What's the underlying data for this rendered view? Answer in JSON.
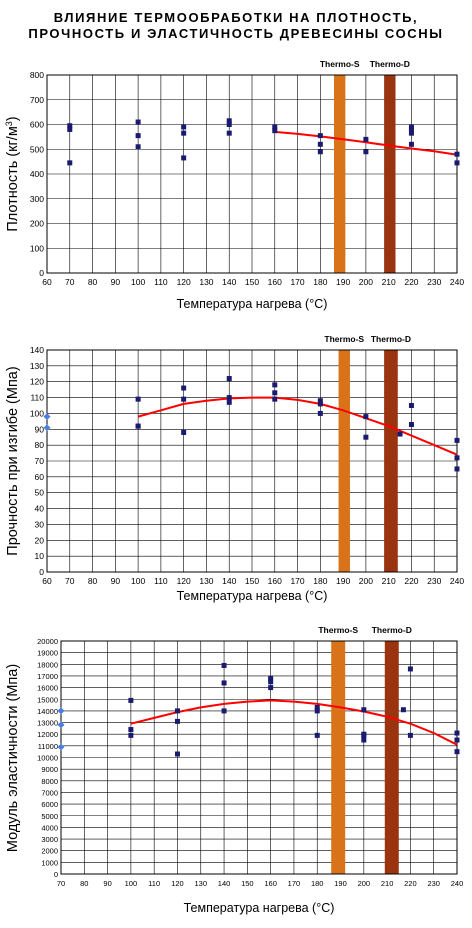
{
  "title": {
    "line1": "ВЛИЯНИЕ ТЕРМООБРАБОТКИ НА ПЛОТНОСТЬ,",
    "line2": "ПРОЧНОСТЬ И ЭЛАСТИЧНОСТЬ ДРЕВЕСИНЫ СОСНЫ"
  },
  "colors": {
    "marker": "#1a1a6e",
    "fit": "#ff0000",
    "control_marker": "#4a7fe0",
    "thermo_s": "#d9731a",
    "thermo_d": "#9a3310",
    "grid": "#000000"
  },
  "chart_data": [
    {
      "id": "density",
      "type": "scatter",
      "ylabel_main": "Плотность (кг/м",
      "ylabel_sup": "3",
      "ylabel_tail": ")",
      "xlabel": "Температура нагрева (°С)",
      "xlim": [
        60,
        240
      ],
      "xstep": 10,
      "ylim": [
        0,
        800
      ],
      "ystep": 100,
      "xticks": [
        "60",
        "70",
        "80",
        "90",
        "100",
        "110",
        "120",
        "130",
        "140",
        "150",
        "160",
        "170",
        "180",
        "190",
        "200",
        "210",
        "220",
        "230",
        "240"
      ],
      "yticks": [
        "0",
        "100",
        "200",
        "300",
        "400",
        "500",
        "600",
        "700",
        "800"
      ],
      "bands": [
        {
          "label": "Thermo-S",
          "x0": 186,
          "x1": 191,
          "color": "#d9731a"
        },
        {
          "label": "Thermo-D",
          "x0": 208,
          "x1": 213,
          "color": "#9a3310"
        }
      ],
      "points": [
        [
          70,
          445
        ],
        [
          70,
          580
        ],
        [
          70,
          595
        ],
        [
          100,
          510
        ],
        [
          100,
          555
        ],
        [
          100,
          610
        ],
        [
          120,
          465
        ],
        [
          120,
          565
        ],
        [
          120,
          590
        ],
        [
          140,
          565
        ],
        [
          140,
          600
        ],
        [
          140,
          615
        ],
        [
          160,
          575
        ],
        [
          160,
          590
        ],
        [
          180,
          490
        ],
        [
          180,
          520
        ],
        [
          180,
          555
        ],
        [
          200,
          490
        ],
        [
          200,
          540
        ],
        [
          220,
          520
        ],
        [
          220,
          565
        ],
        [
          220,
          580
        ],
        [
          220,
          590
        ],
        [
          240,
          445
        ],
        [
          240,
          480
        ]
      ],
      "control_points": [],
      "fit": [
        [
          160,
          570
        ],
        [
          170,
          562
        ],
        [
          180,
          552
        ],
        [
          190,
          540
        ],
        [
          200,
          528
        ],
        [
          210,
          515
        ],
        [
          220,
          503
        ],
        [
          230,
          492
        ],
        [
          240,
          478
        ]
      ]
    },
    {
      "id": "bending",
      "type": "scatter",
      "ylabel_main": "Прочность при изгибе (Мпа)",
      "ylabel_sup": "",
      "ylabel_tail": "",
      "xlabel": "Температура нагрева (°С)",
      "xlim": [
        60,
        240
      ],
      "xstep": 10,
      "ylim": [
        0,
        140
      ],
      "ystep": 10,
      "xticks": [
        "60",
        "70",
        "80",
        "90",
        "100",
        "110",
        "120",
        "130",
        "140",
        "150",
        "160",
        "170",
        "180",
        "190",
        "200",
        "210",
        "220",
        "230",
        "240"
      ],
      "yticks": [
        "0",
        "10",
        "20",
        "30",
        "40",
        "50",
        "60",
        "70",
        "80",
        "90",
        "100",
        "110",
        "120",
        "130",
        "140"
      ],
      "bands": [
        {
          "label": "Thermo-S",
          "x0": 188,
          "x1": 193,
          "color": "#d9731a"
        },
        {
          "label": "Thermo-D",
          "x0": 208,
          "x1": 214,
          "color": "#9a3310"
        }
      ],
      "points": [
        [
          100,
          92
        ],
        [
          100,
          92
        ],
        [
          100,
          109
        ],
        [
          120,
          88
        ],
        [
          120,
          109
        ],
        [
          120,
          116
        ],
        [
          140,
          107
        ],
        [
          140,
          110
        ],
        [
          140,
          122
        ],
        [
          160,
          109
        ],
        [
          160,
          113
        ],
        [
          160,
          118
        ],
        [
          180,
          100
        ],
        [
          180,
          106
        ],
        [
          180,
          108
        ],
        [
          200,
          85
        ],
        [
          200,
          98
        ],
        [
          215,
          87
        ],
        [
          220,
          93
        ],
        [
          220,
          105
        ],
        [
          240,
          65
        ],
        [
          240,
          72
        ],
        [
          240,
          83
        ]
      ],
      "control_points": [
        [
          60,
          91
        ],
        [
          60,
          98
        ]
      ],
      "fit": [
        [
          100,
          98
        ],
        [
          110,
          102
        ],
        [
          120,
          106
        ],
        [
          130,
          108
        ],
        [
          140,
          109.5
        ],
        [
          150,
          110
        ],
        [
          160,
          110
        ],
        [
          170,
          108.5
        ],
        [
          180,
          106
        ],
        [
          190,
          102
        ],
        [
          200,
          97
        ],
        [
          210,
          92
        ],
        [
          220,
          86
        ],
        [
          230,
          80
        ],
        [
          240,
          74
        ]
      ]
    },
    {
      "id": "modulus",
      "type": "scatter",
      "ylabel_main": "Модуль эластичности (Мпа)",
      "ylabel_sup": "",
      "ylabel_tail": "",
      "xlabel": "Температура нагрева (°С)",
      "xlim": [
        70,
        240
      ],
      "xstep": 10,
      "ylim": [
        0,
        20000
      ],
      "ystep": 1000,
      "xticks": [
        "70",
        "80",
        "90",
        "100",
        "110",
        "120",
        "130",
        "140",
        "150",
        "160",
        "170",
        "180",
        "190",
        "200",
        "210",
        "220",
        "230",
        "240"
      ],
      "yticks": [
        "0",
        "1000",
        "2000",
        "3000",
        "4000",
        "5000",
        "6000",
        "7000",
        "8000",
        "9000",
        "10000",
        "11000",
        "12000",
        "13000",
        "14000",
        "15000",
        "16000",
        "17000",
        "18000",
        "19000",
        "20000"
      ],
      "bands": [
        {
          "label": "Thermo-S",
          "x0": 186,
          "x1": 192,
          "color": "#d9731a"
        },
        {
          "label": "Thermo-D",
          "x0": 209,
          "x1": 215,
          "color": "#9a3310"
        }
      ],
      "points": [
        [
          100,
          11900
        ],
        [
          100,
          12400
        ],
        [
          100,
          14900
        ],
        [
          120,
          10300
        ],
        [
          120,
          13100
        ],
        [
          120,
          14000
        ],
        [
          140,
          14000
        ],
        [
          140,
          16400
        ],
        [
          140,
          17900
        ],
        [
          160,
          16000
        ],
        [
          160,
          16500
        ],
        [
          160,
          16800
        ],
        [
          180,
          11900
        ],
        [
          180,
          14000
        ],
        [
          180,
          14300
        ],
        [
          200,
          11500
        ],
        [
          200,
          11900
        ],
        [
          200,
          12000
        ],
        [
          200,
          14100
        ],
        [
          217,
          14100
        ],
        [
          220,
          11900
        ],
        [
          220,
          17600
        ],
        [
          240,
          10500
        ],
        [
          240,
          11500
        ],
        [
          240,
          12100
        ]
      ],
      "control_points": [
        [
          70,
          10900
        ],
        [
          70,
          12800
        ],
        [
          70,
          14000
        ]
      ],
      "fit": [
        [
          100,
          12900
        ],
        [
          110,
          13400
        ],
        [
          120,
          13900
        ],
        [
          130,
          14300
        ],
        [
          140,
          14600
        ],
        [
          150,
          14800
        ],
        [
          160,
          14900
        ],
        [
          170,
          14800
        ],
        [
          180,
          14600
        ],
        [
          190,
          14300
        ],
        [
          200,
          13950
        ],
        [
          210,
          13500
        ],
        [
          220,
          12900
        ],
        [
          230,
          12100
        ],
        [
          240,
          11100
        ]
      ]
    }
  ]
}
